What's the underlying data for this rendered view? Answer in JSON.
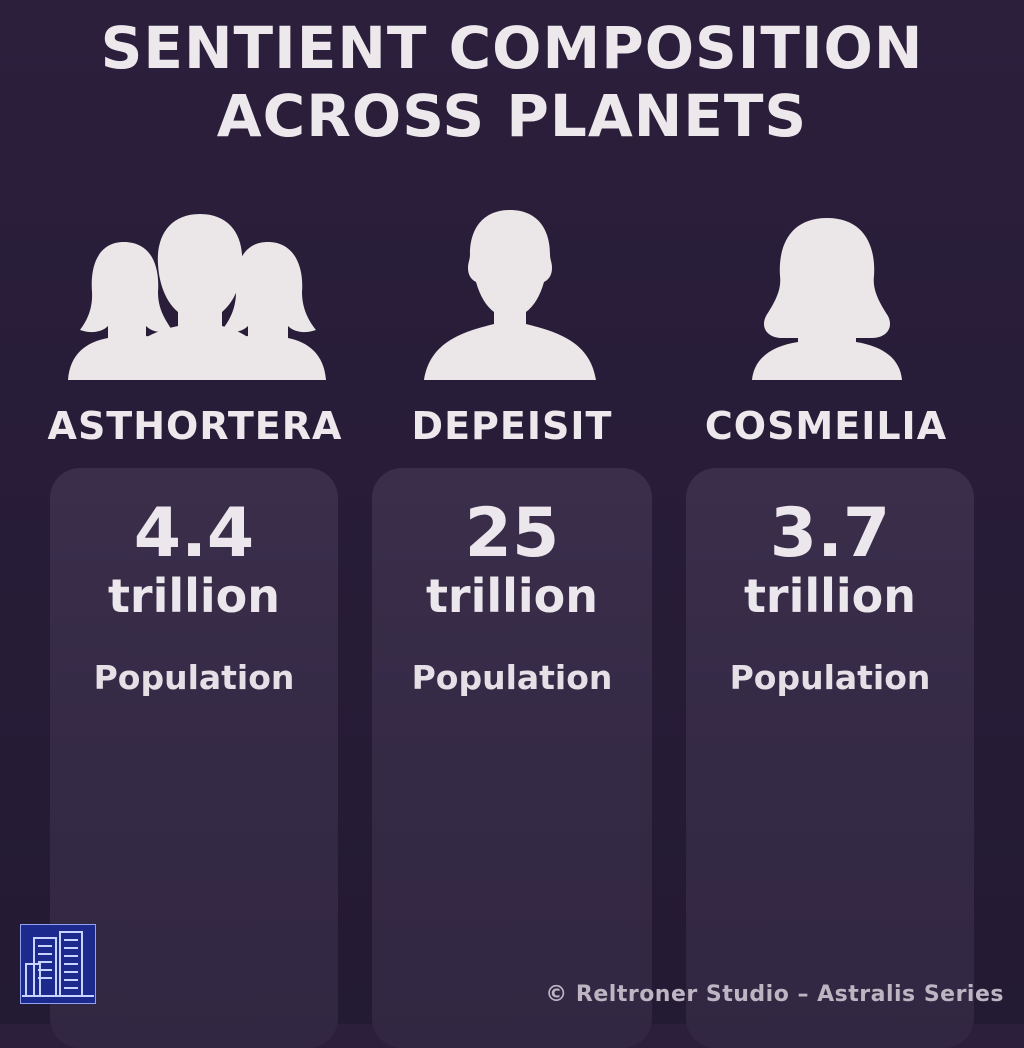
{
  "title": {
    "line1": "SENTIENT COMPOSITION",
    "line2": "ACROSS PLANETS"
  },
  "planets": [
    {
      "name": "ASTHORTERA",
      "value": "4.4",
      "unit": "trillion",
      "label": "Population",
      "icon": "group-people-icon"
    },
    {
      "name": "DEPEISIT",
      "value": "25",
      "unit": "trillion",
      "label": "Population",
      "icon": "male-person-icon"
    },
    {
      "name": "COSMEILIA",
      "value": "3.7",
      "unit": "trillion",
      "label": "Population",
      "icon": "female-person-icon"
    }
  ],
  "footer": {
    "credit": "© Reltroner Studio – Astralis Series",
    "logo_icon": "city-buildings-logo"
  },
  "colors": {
    "background": "#2b1f3c",
    "card": "#362a47",
    "text": "#ece8ec",
    "logo_bg": "#1b2a8c"
  }
}
